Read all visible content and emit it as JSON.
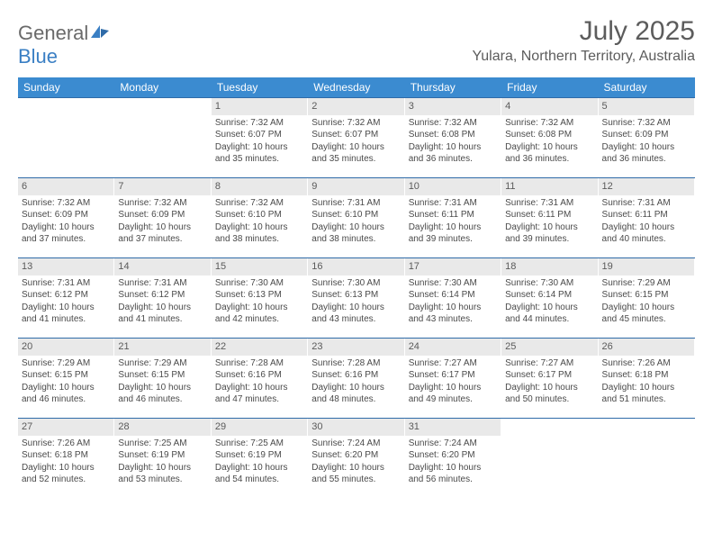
{
  "logo": {
    "main": "General",
    "sub": "Blue"
  },
  "title": "July 2025",
  "location": "Yulara, Northern Territory, Australia",
  "colors": {
    "header_bg": "#3b8bd0",
    "header_text": "#ffffff",
    "week_border": "#2f6ba8",
    "daynum_bg": "#e9e9e9",
    "text": "#4a4a4a",
    "title_text": "#5c5c5c",
    "logo_main": "#6a6a6a",
    "logo_sub": "#3a7fc4"
  },
  "daysOfWeek": [
    "Sunday",
    "Monday",
    "Tuesday",
    "Wednesday",
    "Thursday",
    "Friday",
    "Saturday"
  ],
  "weeks": [
    [
      {
        "n": "",
        "sr": "",
        "ss": "",
        "dl": ""
      },
      {
        "n": "",
        "sr": "",
        "ss": "",
        "dl": ""
      },
      {
        "n": "1",
        "sr": "Sunrise: 7:32 AM",
        "ss": "Sunset: 6:07 PM",
        "dl": "Daylight: 10 hours and 35 minutes."
      },
      {
        "n": "2",
        "sr": "Sunrise: 7:32 AM",
        "ss": "Sunset: 6:07 PM",
        "dl": "Daylight: 10 hours and 35 minutes."
      },
      {
        "n": "3",
        "sr": "Sunrise: 7:32 AM",
        "ss": "Sunset: 6:08 PM",
        "dl": "Daylight: 10 hours and 36 minutes."
      },
      {
        "n": "4",
        "sr": "Sunrise: 7:32 AM",
        "ss": "Sunset: 6:08 PM",
        "dl": "Daylight: 10 hours and 36 minutes."
      },
      {
        "n": "5",
        "sr": "Sunrise: 7:32 AM",
        "ss": "Sunset: 6:09 PM",
        "dl": "Daylight: 10 hours and 36 minutes."
      }
    ],
    [
      {
        "n": "6",
        "sr": "Sunrise: 7:32 AM",
        "ss": "Sunset: 6:09 PM",
        "dl": "Daylight: 10 hours and 37 minutes."
      },
      {
        "n": "7",
        "sr": "Sunrise: 7:32 AM",
        "ss": "Sunset: 6:09 PM",
        "dl": "Daylight: 10 hours and 37 minutes."
      },
      {
        "n": "8",
        "sr": "Sunrise: 7:32 AM",
        "ss": "Sunset: 6:10 PM",
        "dl": "Daylight: 10 hours and 38 minutes."
      },
      {
        "n": "9",
        "sr": "Sunrise: 7:31 AM",
        "ss": "Sunset: 6:10 PM",
        "dl": "Daylight: 10 hours and 38 minutes."
      },
      {
        "n": "10",
        "sr": "Sunrise: 7:31 AM",
        "ss": "Sunset: 6:11 PM",
        "dl": "Daylight: 10 hours and 39 minutes."
      },
      {
        "n": "11",
        "sr": "Sunrise: 7:31 AM",
        "ss": "Sunset: 6:11 PM",
        "dl": "Daylight: 10 hours and 39 minutes."
      },
      {
        "n": "12",
        "sr": "Sunrise: 7:31 AM",
        "ss": "Sunset: 6:11 PM",
        "dl": "Daylight: 10 hours and 40 minutes."
      }
    ],
    [
      {
        "n": "13",
        "sr": "Sunrise: 7:31 AM",
        "ss": "Sunset: 6:12 PM",
        "dl": "Daylight: 10 hours and 41 minutes."
      },
      {
        "n": "14",
        "sr": "Sunrise: 7:31 AM",
        "ss": "Sunset: 6:12 PM",
        "dl": "Daylight: 10 hours and 41 minutes."
      },
      {
        "n": "15",
        "sr": "Sunrise: 7:30 AM",
        "ss": "Sunset: 6:13 PM",
        "dl": "Daylight: 10 hours and 42 minutes."
      },
      {
        "n": "16",
        "sr": "Sunrise: 7:30 AM",
        "ss": "Sunset: 6:13 PM",
        "dl": "Daylight: 10 hours and 43 minutes."
      },
      {
        "n": "17",
        "sr": "Sunrise: 7:30 AM",
        "ss": "Sunset: 6:14 PM",
        "dl": "Daylight: 10 hours and 43 minutes."
      },
      {
        "n": "18",
        "sr": "Sunrise: 7:30 AM",
        "ss": "Sunset: 6:14 PM",
        "dl": "Daylight: 10 hours and 44 minutes."
      },
      {
        "n": "19",
        "sr": "Sunrise: 7:29 AM",
        "ss": "Sunset: 6:15 PM",
        "dl": "Daylight: 10 hours and 45 minutes."
      }
    ],
    [
      {
        "n": "20",
        "sr": "Sunrise: 7:29 AM",
        "ss": "Sunset: 6:15 PM",
        "dl": "Daylight: 10 hours and 46 minutes."
      },
      {
        "n": "21",
        "sr": "Sunrise: 7:29 AM",
        "ss": "Sunset: 6:15 PM",
        "dl": "Daylight: 10 hours and 46 minutes."
      },
      {
        "n": "22",
        "sr": "Sunrise: 7:28 AM",
        "ss": "Sunset: 6:16 PM",
        "dl": "Daylight: 10 hours and 47 minutes."
      },
      {
        "n": "23",
        "sr": "Sunrise: 7:28 AM",
        "ss": "Sunset: 6:16 PM",
        "dl": "Daylight: 10 hours and 48 minutes."
      },
      {
        "n": "24",
        "sr": "Sunrise: 7:27 AM",
        "ss": "Sunset: 6:17 PM",
        "dl": "Daylight: 10 hours and 49 minutes."
      },
      {
        "n": "25",
        "sr": "Sunrise: 7:27 AM",
        "ss": "Sunset: 6:17 PM",
        "dl": "Daylight: 10 hours and 50 minutes."
      },
      {
        "n": "26",
        "sr": "Sunrise: 7:26 AM",
        "ss": "Sunset: 6:18 PM",
        "dl": "Daylight: 10 hours and 51 minutes."
      }
    ],
    [
      {
        "n": "27",
        "sr": "Sunrise: 7:26 AM",
        "ss": "Sunset: 6:18 PM",
        "dl": "Daylight: 10 hours and 52 minutes."
      },
      {
        "n": "28",
        "sr": "Sunrise: 7:25 AM",
        "ss": "Sunset: 6:19 PM",
        "dl": "Daylight: 10 hours and 53 minutes."
      },
      {
        "n": "29",
        "sr": "Sunrise: 7:25 AM",
        "ss": "Sunset: 6:19 PM",
        "dl": "Daylight: 10 hours and 54 minutes."
      },
      {
        "n": "30",
        "sr": "Sunrise: 7:24 AM",
        "ss": "Sunset: 6:20 PM",
        "dl": "Daylight: 10 hours and 55 minutes."
      },
      {
        "n": "31",
        "sr": "Sunrise: 7:24 AM",
        "ss": "Sunset: 6:20 PM",
        "dl": "Daylight: 10 hours and 56 minutes."
      },
      {
        "n": "",
        "sr": "",
        "ss": "",
        "dl": ""
      },
      {
        "n": "",
        "sr": "",
        "ss": "",
        "dl": ""
      }
    ]
  ]
}
